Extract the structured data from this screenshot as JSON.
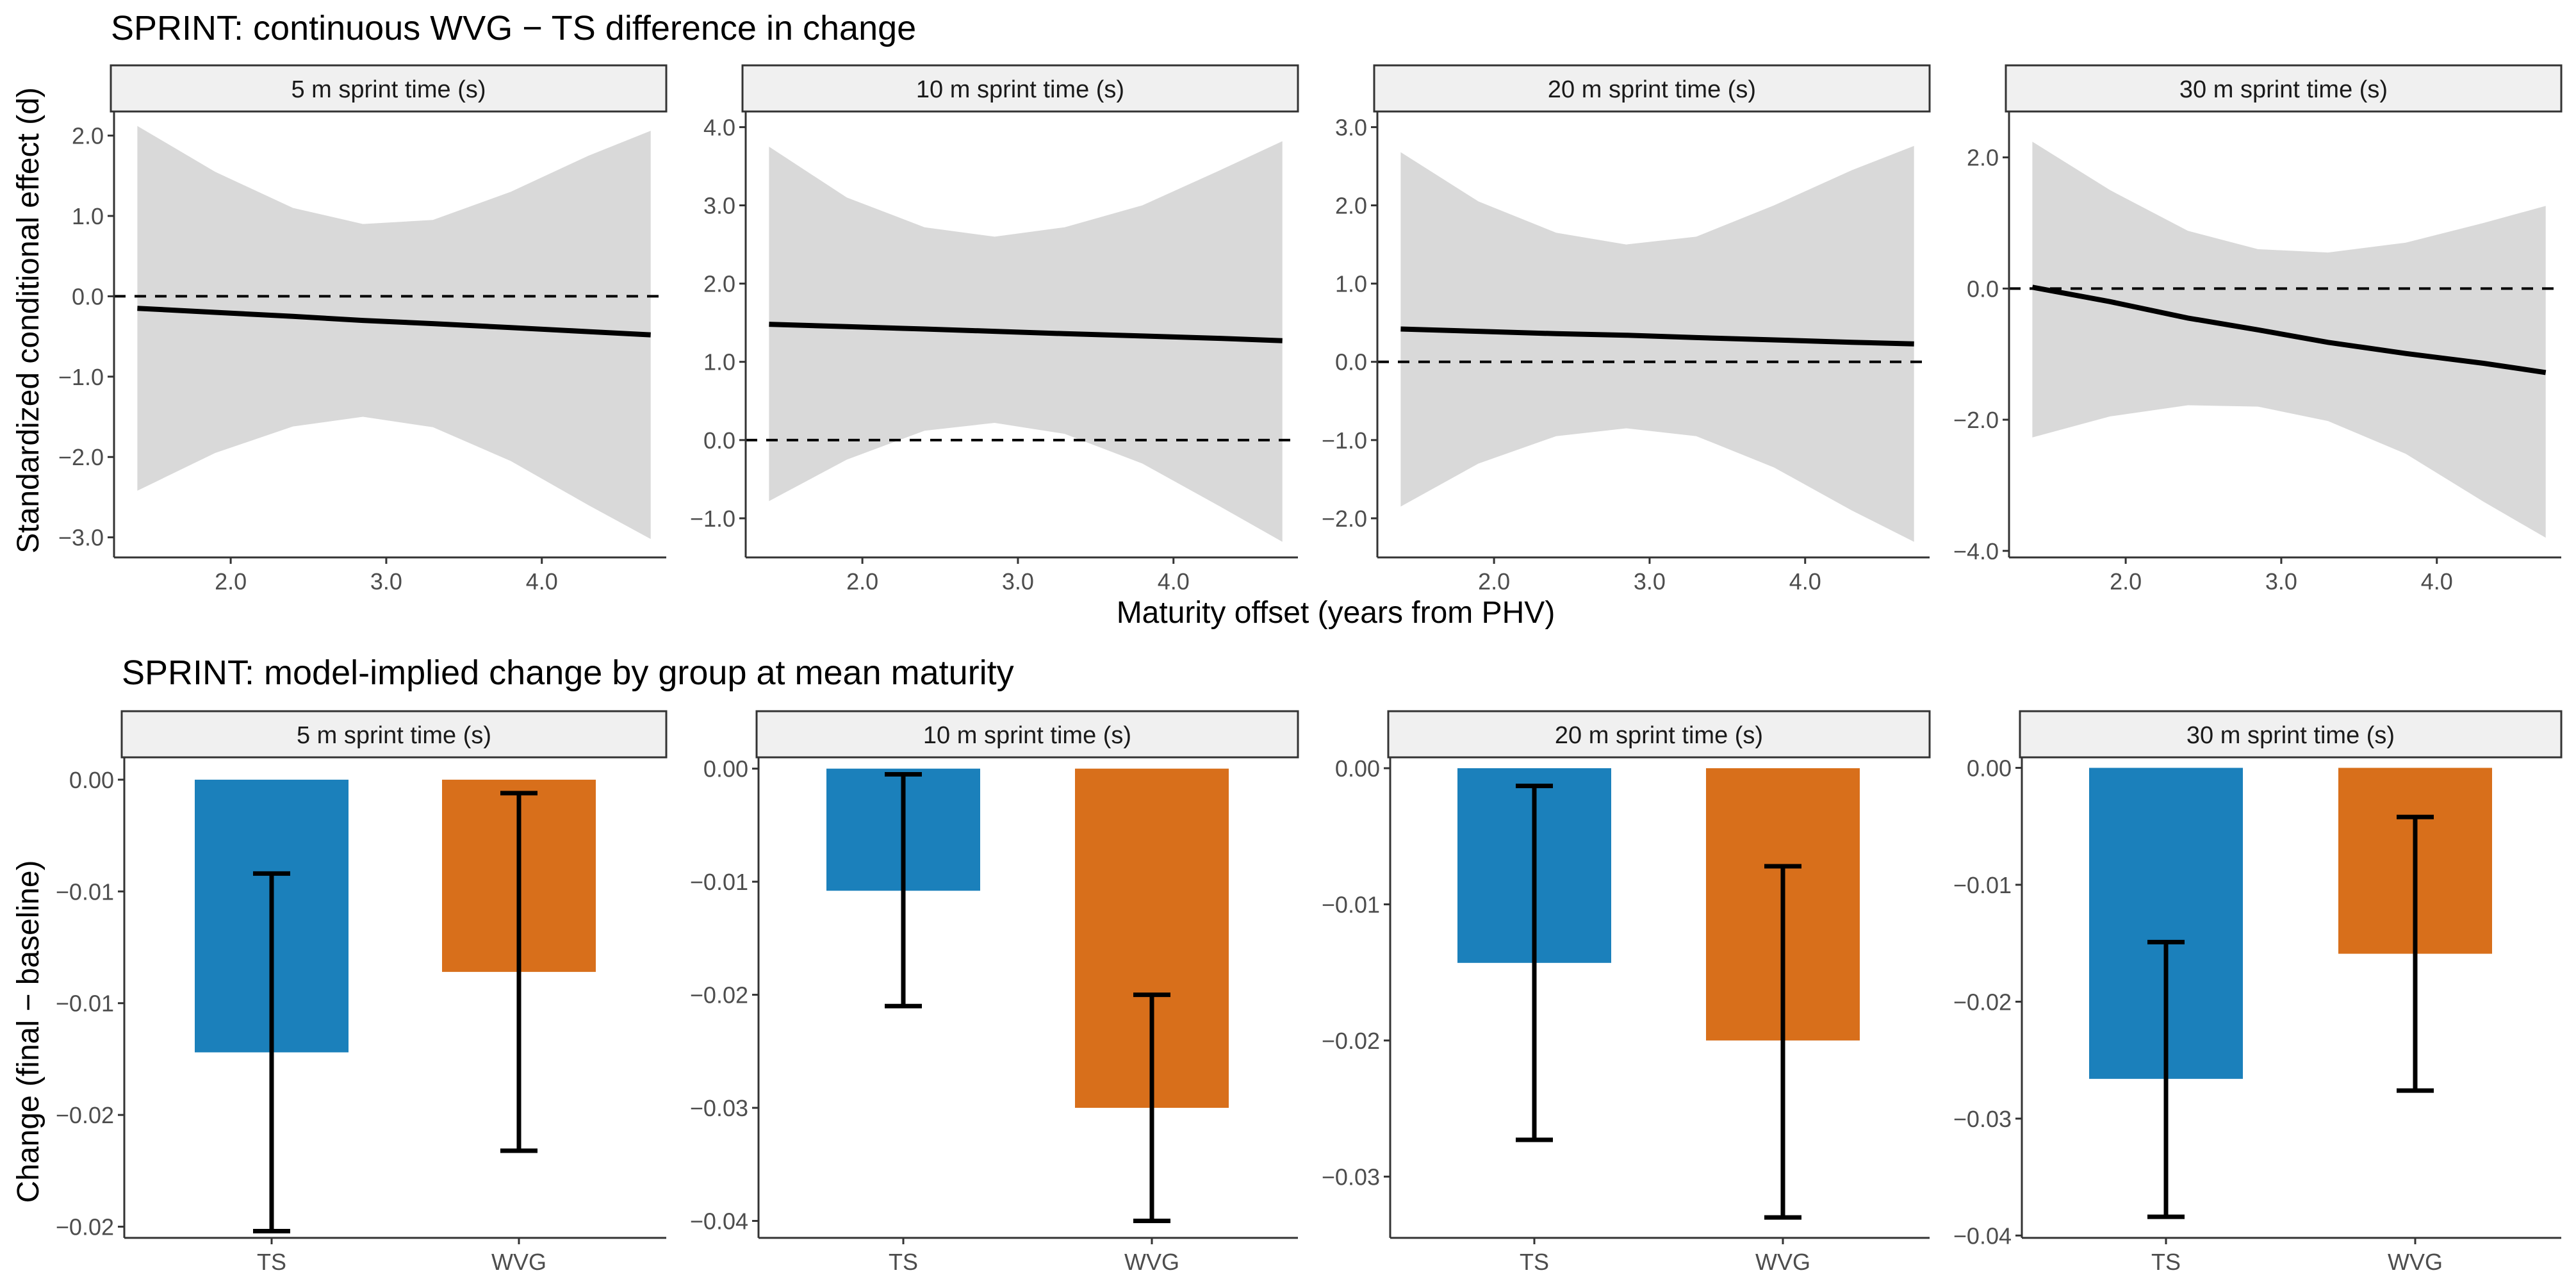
{
  "colors": {
    "TS": "#1b80bb",
    "WVG": "#d86f1b",
    "ribbon": "#d9d9d9",
    "line": "#000000"
  },
  "top_title": "SPRINT: continuous WVG − TS difference in change",
  "bottom_title": "SPRINT: model-implied change by group at mean maturity",
  "top_ylabel": "Standardized conditional effect (d)",
  "top_xlabel": "Maturity offset (years from PHV)",
  "bottom_ylabel": "Change (final − baseline)",
  "chart_data": [
    {
      "type": "line",
      "title": "SPRINT: continuous WVG − TS difference in change",
      "xlabel": "Maturity offset (years from PHV)",
      "ylabel": "Standardized conditional effect (d)",
      "panels": [
        {
          "strip": "5 m sprint time (s)",
          "xlim": [
            1.25,
            4.8
          ],
          "ylim": [
            -3.25,
            2.3
          ],
          "xticks": [
            2.0,
            3.0,
            4.0
          ],
          "xtick_labels": [
            "2.0",
            "3.0",
            "4.0"
          ],
          "yticks": [
            2.0,
            1.0,
            0.0,
            -1.0,
            -2.0,
            -3.0
          ],
          "ytick_labels": [
            "2.0",
            "1.0",
            "0.0",
            "−1.0",
            "−2.0",
            "−3.0"
          ],
          "ref": 0.0,
          "x": [
            1.4,
            1.9,
            2.4,
            2.85,
            3.3,
            3.8,
            4.3,
            4.7
          ],
          "fit": [
            -0.15,
            -0.2,
            -0.25,
            -0.3,
            -0.34,
            -0.39,
            -0.44,
            -0.48
          ],
          "lower": [
            -2.42,
            -1.95,
            -1.62,
            -1.5,
            -1.63,
            -2.05,
            -2.6,
            -3.02
          ],
          "upper": [
            2.12,
            1.55,
            1.1,
            0.9,
            0.95,
            1.3,
            1.75,
            2.06
          ]
        },
        {
          "strip": "10 m sprint time (s)",
          "xlim": [
            1.25,
            4.8
          ],
          "ylim": [
            -1.5,
            4.2
          ],
          "xticks": [
            2.0,
            3.0,
            4.0
          ],
          "xtick_labels": [
            "2.0",
            "3.0",
            "4.0"
          ],
          "yticks": [
            4.0,
            3.0,
            2.0,
            1.0,
            0.0,
            -1.0
          ],
          "ytick_labels": [
            "4.0",
            "3.0",
            "2.0",
            "1.0",
            "0.0",
            "−1.0"
          ],
          "ref": 0.0,
          "x": [
            1.4,
            1.9,
            2.4,
            2.85,
            3.3,
            3.8,
            4.3,
            4.7
          ],
          "fit": [
            1.48,
            1.45,
            1.42,
            1.39,
            1.36,
            1.33,
            1.3,
            1.27
          ],
          "lower": [
            -0.78,
            -0.25,
            0.12,
            0.22,
            0.08,
            -0.3,
            -0.85,
            -1.3
          ],
          "upper": [
            3.75,
            3.1,
            2.72,
            2.6,
            2.72,
            3.0,
            3.45,
            3.82
          ]
        },
        {
          "strip": "20 m sprint time (s)",
          "xlim": [
            1.25,
            4.8
          ],
          "ylim": [
            -2.5,
            3.2
          ],
          "xticks": [
            2.0,
            3.0,
            4.0
          ],
          "xtick_labels": [
            "2.0",
            "3.0",
            "4.0"
          ],
          "yticks": [
            3.0,
            2.0,
            1.0,
            0.0,
            -1.0,
            -2.0
          ],
          "ytick_labels": [
            "3.0",
            "2.0",
            "1.0",
            "0.0",
            "−1.0",
            "−2.0"
          ],
          "ref": 0.0,
          "x": [
            1.4,
            1.9,
            2.4,
            2.85,
            3.3,
            3.8,
            4.3,
            4.7
          ],
          "fit": [
            0.42,
            0.39,
            0.36,
            0.34,
            0.31,
            0.28,
            0.25,
            0.23
          ],
          "lower": [
            -1.85,
            -1.3,
            -0.95,
            -0.85,
            -0.95,
            -1.35,
            -1.9,
            -2.3
          ],
          "upper": [
            2.68,
            2.05,
            1.65,
            1.5,
            1.6,
            2.0,
            2.45,
            2.76
          ]
        },
        {
          "strip": "30 m sprint time (s)",
          "xlim": [
            1.25,
            4.8
          ],
          "ylim": [
            -4.1,
            2.7
          ],
          "xticks": [
            2.0,
            3.0,
            4.0
          ],
          "xtick_labels": [
            "2.0",
            "3.0",
            "4.0"
          ],
          "yticks": [
            2.0,
            0.0,
            -2.0,
            -4.0
          ],
          "ytick_labels": [
            "2.0",
            "0.0",
            "−2.0",
            "−4.0"
          ],
          "ref": 0.0,
          "x": [
            1.4,
            1.9,
            2.4,
            2.85,
            3.3,
            3.8,
            4.3,
            4.7
          ],
          "fit": [
            0.02,
            -0.2,
            -0.45,
            -0.63,
            -0.82,
            -0.99,
            -1.14,
            -1.28
          ],
          "lower": [
            -2.27,
            -1.95,
            -1.78,
            -1.8,
            -2.02,
            -2.52,
            -3.25,
            -3.8
          ],
          "upper": [
            2.24,
            1.5,
            0.88,
            0.6,
            0.55,
            0.7,
            1.0,
            1.26
          ]
        }
      ]
    },
    {
      "type": "bar",
      "title": "SPRINT: model-implied change by group at mean maturity",
      "xlabel": "",
      "ylabel": "Change (final − baseline)",
      "categories": [
        "TS",
        "WVG"
      ],
      "panels": [
        {
          "strip": "5 m sprint time (s)",
          "ylim": [
            -0.0205,
            0.001
          ],
          "yticks": [
            0.0,
            -0.005,
            -0.01,
            -0.015,
            -0.02
          ],
          "ytick_labels": [
            "0.00",
            "−0.01",
            "−0.01",
            "−0.02",
            "−0.02"
          ],
          "values": [
            -0.0122,
            -0.0086
          ],
          "ci_low": [
            -0.0202,
            -0.0166
          ],
          "ci_high": [
            -0.0042,
            -0.0006
          ]
        },
        {
          "strip": "10 m sprint time (s)",
          "ylim": [
            -0.0415,
            0.001
          ],
          "yticks": [
            0.0,
            -0.01,
            -0.02,
            -0.03,
            -0.04
          ],
          "ytick_labels": [
            "0.00",
            "−0.01",
            "−0.02",
            "−0.03",
            "−0.04"
          ],
          "values": [
            -0.0108,
            -0.03
          ],
          "ci_low": [
            -0.021,
            -0.04
          ],
          "ci_high": [
            -0.0005,
            -0.02
          ]
        },
        {
          "strip": "20 m sprint time (s)",
          "ylim": [
            -0.0345,
            0.0008
          ],
          "yticks": [
            0.0,
            -0.01,
            -0.02,
            -0.03
          ],
          "ytick_labels": [
            "0.00",
            "−0.01",
            "−0.02",
            "−0.03"
          ],
          "values": [
            -0.0143,
            -0.02
          ],
          "ci_low": [
            -0.0273,
            -0.033
          ],
          "ci_high": [
            -0.0013,
            -0.0072
          ]
        },
        {
          "strip": "30 m sprint time (s)",
          "ylim": [
            -0.0402,
            0.0009
          ],
          "yticks": [
            0.0,
            -0.01,
            -0.02,
            -0.03,
            -0.04
          ],
          "ytick_labels": [
            "0.00",
            "−0.01",
            "−0.02",
            "−0.03",
            "−0.04"
          ],
          "values": [
            -0.0266,
            -0.0159
          ],
          "ci_low": [
            -0.0384,
            -0.0276
          ],
          "ci_high": [
            -0.0149,
            -0.0042
          ]
        }
      ]
    }
  ]
}
